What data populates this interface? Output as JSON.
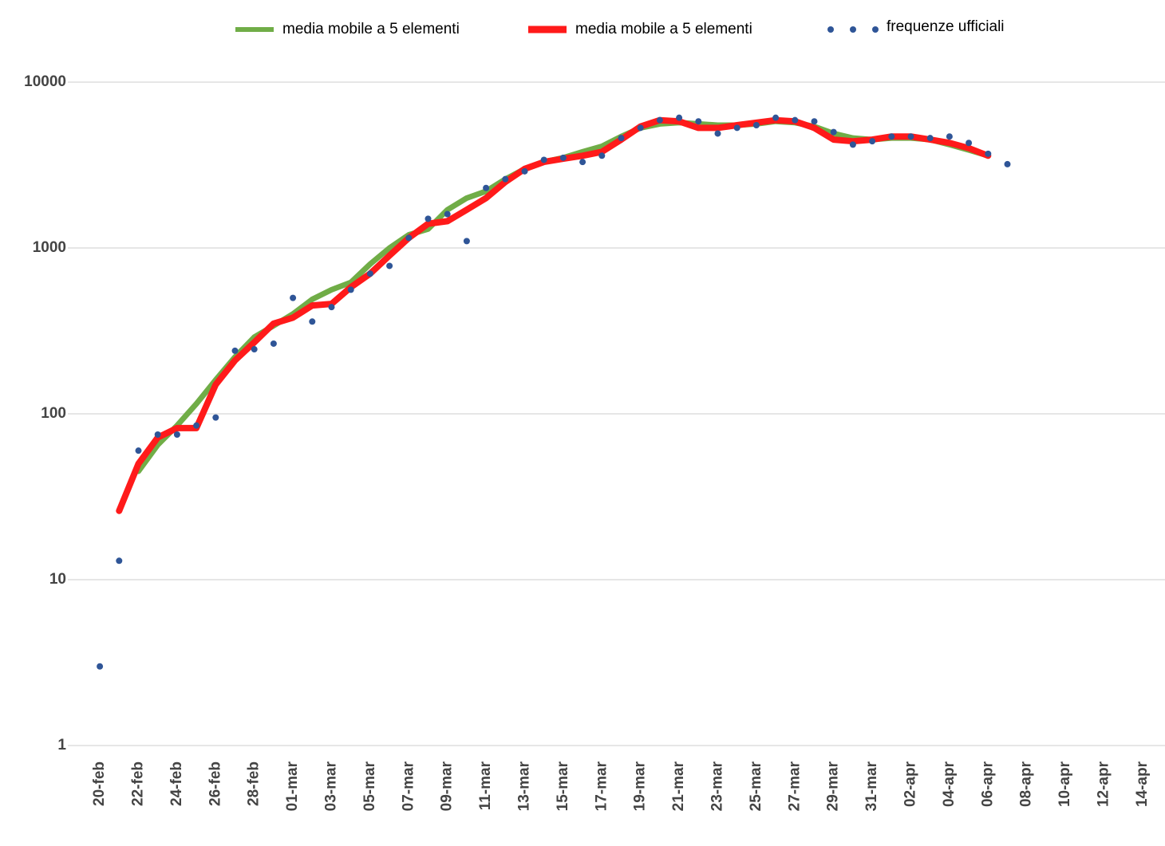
{
  "chart_data": {
    "type": "line",
    "categories": [
      "20-feb",
      null,
      "22-feb",
      null,
      "24-feb",
      null,
      "26-feb",
      null,
      "28-feb",
      null,
      "01-mar",
      null,
      "03-mar",
      null,
      "05-mar",
      null,
      "07-mar",
      null,
      "09-mar",
      null,
      "11-mar",
      null,
      "13-mar",
      null,
      "15-mar",
      null,
      "17-mar",
      null,
      "19-mar",
      null,
      "21-mar",
      null,
      "23-mar",
      null,
      "25-mar",
      null,
      "27-mar",
      null,
      "29-mar",
      null,
      "31-mar",
      null,
      "02-apr",
      null,
      "04-apr",
      null,
      "06-apr",
      null,
      "08-apr",
      null,
      "10-apr",
      null,
      "12-apr",
      null,
      "14-apr"
    ],
    "series": [
      {
        "name": "media mobile a 5 elementi",
        "color": "#70ad47",
        "type": "line",
        "values": [
          null,
          null,
          45,
          65,
          85,
          115,
          160,
          220,
          290,
          340,
          400,
          490,
          560,
          620,
          800,
          1000,
          1200,
          1300,
          1700,
          2000,
          2200,
          2600,
          3000,
          3300,
          3500,
          3800,
          4100,
          4700,
          5300,
          5600,
          5700,
          5600,
          5500,
          5500,
          5600,
          5800,
          5700,
          5400,
          4900,
          4600,
          4500,
          4600,
          4600,
          4500,
          4200,
          3900,
          3600,
          null,
          null,
          null,
          null,
          null,
          null,
          null,
          null
        ]
      },
      {
        "name": "media mobile a 5 elementi",
        "color": "#ff1a1a",
        "type": "line",
        "values": [
          null,
          26,
          50,
          72,
          82,
          82,
          150,
          210,
          270,
          350,
          380,
          450,
          460,
          580,
          700,
          900,
          1150,
          1400,
          1450,
          1700,
          2000,
          2500,
          3000,
          3300,
          3450,
          3600,
          3800,
          4500,
          5400,
          5900,
          5800,
          5300,
          5300,
          5500,
          5700,
          5900,
          5800,
          5300,
          4500,
          4400,
          4500,
          4700,
          4700,
          4500,
          4300,
          4000,
          3600,
          null,
          null,
          null,
          null,
          null,
          null,
          null,
          null
        ]
      },
      {
        "name": "frequenze ufficiali",
        "color": "#2f5597",
        "type": "scatter",
        "values": [
          3,
          13,
          60,
          75,
          75,
          85,
          95,
          240,
          245,
          265,
          500,
          360,
          440,
          560,
          700,
          780,
          1150,
          1500,
          1600,
          1100,
          2300,
          2600,
          2900,
          3400,
          3500,
          3300,
          3600,
          4600,
          5300,
          5900,
          6100,
          5800,
          4900,
          5300,
          5500,
          6100,
          5900,
          5800,
          5000,
          4200,
          4400,
          4700,
          4700,
          4600,
          4700,
          4300,
          3700,
          3200,
          null,
          null,
          null,
          null,
          null,
          null,
          null
        ]
      }
    ],
    "ylim": [
      1,
      10000
    ],
    "yticks": [
      1,
      10,
      100,
      1000,
      10000
    ],
    "log_scale": true,
    "grid": true,
    "legend": "top"
  }
}
